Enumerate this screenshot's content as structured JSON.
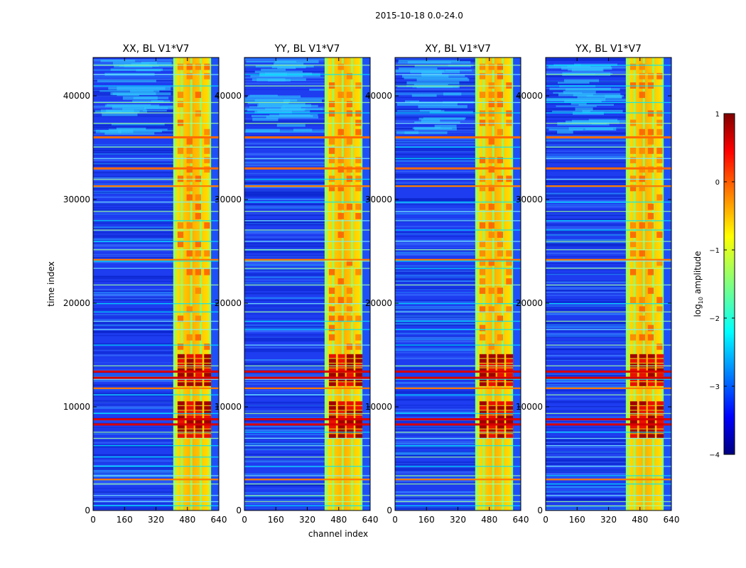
{
  "figure_title": "2015-10-18 0.0-24.0",
  "colormap": "jet",
  "chart_data": {
    "type": "heatmap",
    "shared_xlabel": "channel index",
    "ylabel": "time index",
    "x_ticks": [
      0,
      160,
      320,
      480,
      640
    ],
    "y_ticks": [
      0,
      10000,
      20000,
      30000,
      40000
    ],
    "xlim": [
      0,
      640
    ],
    "ylim": [
      0,
      43700
    ],
    "panels": [
      {
        "title": "XX, BL V1*V7",
        "strong_bands": [
          8300,
          8800,
          12800,
          13400,
          33000,
          36000
        ]
      },
      {
        "title": "YY, BL V1*V7",
        "strong_bands": [
          8300,
          8800,
          12800,
          13400,
          33000,
          36000
        ]
      },
      {
        "title": "XY, BL V1*V7",
        "strong_bands": [
          8300,
          8800,
          12800,
          13400,
          33000,
          36000
        ]
      },
      {
        "title": "YX, BL V1*V7",
        "strong_bands": [
          8300,
          8800,
          12800,
          13400,
          33000,
          36000
        ]
      }
    ],
    "rfi_channel_range": [
      408,
      600
    ],
    "colorbar": {
      "label": "log10 amplitude",
      "label_main": "log",
      "label_sub": "10",
      "label_suffix": " amplitude",
      "min": -4,
      "max": 1,
      "ticks": [
        1,
        0,
        -1,
        -2,
        -3,
        -4
      ],
      "tick_labels": [
        "1",
        "0",
        "−1",
        "−2",
        "−3",
        "−4"
      ]
    }
  }
}
